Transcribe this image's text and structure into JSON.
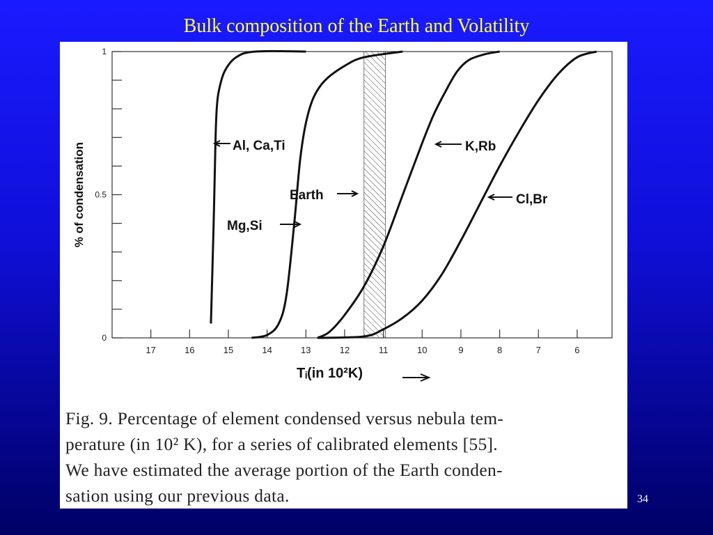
{
  "slide": {
    "title": "Bulk composition of the Earth and Volatility",
    "number": "34"
  },
  "caption": {
    "lines": [
      "Fig. 9. Percentage of element condensed versus nebula tem-",
      "perature (in 10² K), for a series of calibrated elements [55].",
      "We have estimated the average portion of the Earth conden-",
      "sation using our previous data."
    ]
  },
  "chart_data": {
    "type": "line",
    "title": "",
    "xlabel": "Tᵢ(in 10²K)",
    "ylabel": "% of condensation",
    "x_reversed": true,
    "xlim": [
      18,
      5.1
    ],
    "ylim": [
      0,
      1
    ],
    "x_ticks": [
      "17",
      "16",
      "15",
      "14",
      "13",
      "12",
      "11",
      "10",
      "9",
      "8",
      "7",
      "6"
    ],
    "y_ticks": [
      "0",
      "0.5",
      "1"
    ],
    "shaded_band": {
      "label": "Earth",
      "x_range": [
        11.5,
        10.95
      ]
    },
    "series": [
      {
        "name": "Al, Ca,Ti",
        "x": [
          15.45,
          15.38,
          15.33,
          15.3,
          15.25,
          15.1,
          14.8,
          14.3,
          13.0
        ],
        "y": [
          0.05,
          0.4,
          0.7,
          0.8,
          0.86,
          0.93,
          0.98,
          1.0,
          1.0
        ]
      },
      {
        "name": "Mg,Si",
        "x": [
          14.4,
          14.0,
          13.7,
          13.5,
          13.3,
          13.15,
          13.0,
          12.8,
          12.5,
          12.0,
          11.5,
          10.5
        ],
        "y": [
          0.0,
          0.01,
          0.05,
          0.15,
          0.4,
          0.62,
          0.75,
          0.84,
          0.9,
          0.95,
          0.98,
          1.0
        ]
      },
      {
        "name": "K,Rb",
        "x": [
          12.7,
          12.4,
          12.0,
          11.5,
          11.0,
          10.5,
          10.0,
          9.7,
          9.4,
          9.1,
          8.8,
          8.4,
          8.0
        ],
        "y": [
          0.0,
          0.02,
          0.08,
          0.18,
          0.32,
          0.5,
          0.68,
          0.78,
          0.86,
          0.93,
          0.97,
          0.99,
          1.0
        ]
      },
      {
        "name": "Cl,Br",
        "x": [
          12.7,
          11.5,
          11.0,
          10.5,
          10.0,
          9.5,
          9.0,
          8.5,
          8.0,
          7.5,
          7.0,
          6.5,
          6.0,
          5.5
        ],
        "y": [
          0.0,
          0.005,
          0.03,
          0.07,
          0.13,
          0.22,
          0.34,
          0.47,
          0.6,
          0.72,
          0.83,
          0.92,
          0.98,
          1.0
        ]
      }
    ],
    "annotations": [
      {
        "text": "Al, Ca,Ti",
        "arrow": "left"
      },
      {
        "text": "Earth",
        "arrow": "right"
      },
      {
        "text": "Mg,Si",
        "arrow": "right"
      },
      {
        "text": "K,Rb",
        "arrow": "left"
      },
      {
        "text": "Cl,Br",
        "arrow": "left"
      }
    ],
    "grid": false
  }
}
